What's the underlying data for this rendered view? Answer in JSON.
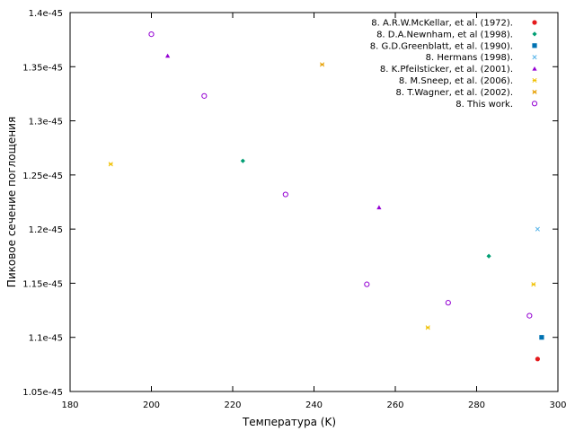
{
  "chart_data": {
    "type": "scatter",
    "xlabel": "Температура (K)",
    "ylabel": "Пиковое сечение поглощения",
    "xlim": [
      180,
      300
    ],
    "ylim": [
      1.05e-45,
      1.4e-45
    ],
    "x_ticks": [
      180,
      200,
      220,
      240,
      260,
      280,
      300
    ],
    "y_ticks": [
      {
        "value": 1.05e-45,
        "label": "1.05e-45"
      },
      {
        "value": 1.1e-45,
        "label": "1.1e-45"
      },
      {
        "value": 1.15e-45,
        "label": "1.15e-45"
      },
      {
        "value": 1.2e-45,
        "label": "1.2e-45"
      },
      {
        "value": 1.25e-45,
        "label": "1.25e-45"
      },
      {
        "value": 1.3e-45,
        "label": "1.3e-45"
      },
      {
        "value": 1.35e-45,
        "label": "1.35e-45"
      },
      {
        "value": 1.4e-45,
        "label": "1.4e-45"
      }
    ],
    "legend_position": "top-right",
    "grid": false,
    "series": [
      {
        "name": "8. A.R.W.McKellar, et al. (1972).",
        "color": "#e41a1c",
        "marker": "circle-filled",
        "points": [
          [
            295,
            1.08e-45
          ]
        ]
      },
      {
        "name": "8. D.A.Newnham, et al (1998).",
        "color": "#009e73",
        "marker": "diamond-filled",
        "points": [
          [
            222.5,
            1.263e-45
          ],
          [
            283,
            1.175e-45
          ]
        ]
      },
      {
        "name": "8. G.D.Greenblatt, et al. (1990).",
        "color": "#0072b2",
        "marker": "square-filled",
        "points": [
          [
            296,
            1.1e-45
          ]
        ]
      },
      {
        "name": "8. Hermans (1998).",
        "color": "#56b4e9",
        "marker": "cross",
        "points": [
          [
            295,
            1.2e-45
          ]
        ]
      },
      {
        "name": "8. K.Pfeilsticker, et al. (2001).",
        "color": "#9400d3",
        "marker": "triangle-filled",
        "points": [
          [
            204,
            1.36e-45
          ],
          [
            256,
            1.22e-45
          ]
        ]
      },
      {
        "name": "8. M.Sneep, et al. (2006).",
        "color": "#f0c000",
        "marker": "x",
        "points": [
          [
            190,
            1.26e-45
          ],
          [
            268,
            1.109e-45
          ],
          [
            294,
            1.149e-45
          ]
        ]
      },
      {
        "name": "8. T.Wagner, et al. (2002).",
        "color": "#e69f00",
        "marker": "x",
        "points": [
          [
            242,
            1.352e-45
          ]
        ]
      },
      {
        "name": "8. This work.",
        "color": "#9400d3",
        "marker": "circle-open",
        "points": [
          [
            200,
            1.38e-45
          ],
          [
            213,
            1.323e-45
          ],
          [
            233,
            1.232e-45
          ],
          [
            253,
            1.149e-45
          ],
          [
            273,
            1.132e-45
          ],
          [
            293,
            1.12e-45
          ]
        ]
      }
    ]
  }
}
